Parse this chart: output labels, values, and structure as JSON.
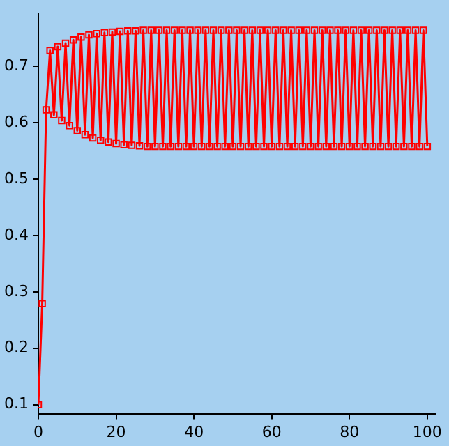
{
  "chart_data": {
    "type": "line",
    "x": [
      0,
      1,
      2,
      3,
      4,
      5,
      6,
      7,
      8,
      9,
      10,
      11,
      12,
      13,
      14,
      15,
      16,
      17,
      18,
      19,
      20,
      21,
      22,
      23,
      24,
      25,
      26,
      27,
      28,
      29,
      30,
      31,
      32,
      33,
      34,
      35,
      36,
      37,
      38,
      39,
      40,
      41,
      42,
      43,
      44,
      45,
      46,
      47,
      48,
      49,
      50,
      51,
      52,
      53,
      54,
      55,
      56,
      57,
      58,
      59,
      60,
      61,
      62,
      63,
      64,
      65,
      66,
      67,
      68,
      69,
      70,
      71,
      72,
      73,
      74,
      75,
      76,
      77,
      78,
      79,
      80,
      81,
      82,
      83,
      84,
      85,
      86,
      87,
      88,
      89,
      90,
      91,
      92,
      93,
      94,
      95,
      96,
      97,
      98,
      99,
      100
    ],
    "series": [
      {
        "color": "#ff0000",
        "values": [
          0.1,
          0.279,
          0.623,
          0.728,
          0.614,
          0.735,
          0.604,
          0.741,
          0.595,
          0.747,
          0.586,
          0.752,
          0.579,
          0.756,
          0.573,
          0.758,
          0.569,
          0.76,
          0.566,
          0.761,
          0.563,
          0.762,
          0.561,
          0.763,
          0.56,
          0.763,
          0.559,
          0.764,
          0.558,
          0.764,
          0.558,
          0.764,
          0.558,
          0.764,
          0.558,
          0.764,
          0.558,
          0.764,
          0.558,
          0.764,
          0.558,
          0.764,
          0.558,
          0.764,
          0.558,
          0.764,
          0.558,
          0.764,
          0.558,
          0.764,
          0.558,
          0.764,
          0.558,
          0.764,
          0.558,
          0.764,
          0.558,
          0.764,
          0.558,
          0.764,
          0.558,
          0.764,
          0.558,
          0.764,
          0.558,
          0.764,
          0.558,
          0.764,
          0.558,
          0.764,
          0.558,
          0.764,
          0.558,
          0.764,
          0.558,
          0.764,
          0.558,
          0.764,
          0.558,
          0.764,
          0.558,
          0.764,
          0.558,
          0.764,
          0.558,
          0.764,
          0.558,
          0.764,
          0.558,
          0.764,
          0.558,
          0.764,
          0.558,
          0.764,
          0.558,
          0.764,
          0.558,
          0.764,
          0.558,
          0.764,
          0.558
        ]
      }
    ],
    "xlim": [
      0,
      102
    ],
    "xticks": [
      0,
      20,
      40,
      60,
      80,
      100
    ],
    "ylim": [
      0.084,
      0.794
    ],
    "yticks": [
      0.1,
      0.2,
      0.3,
      0.4,
      0.5,
      0.6,
      0.7
    ],
    "grid": false,
    "legend": false,
    "marker": "square",
    "line_style": "solid"
  }
}
